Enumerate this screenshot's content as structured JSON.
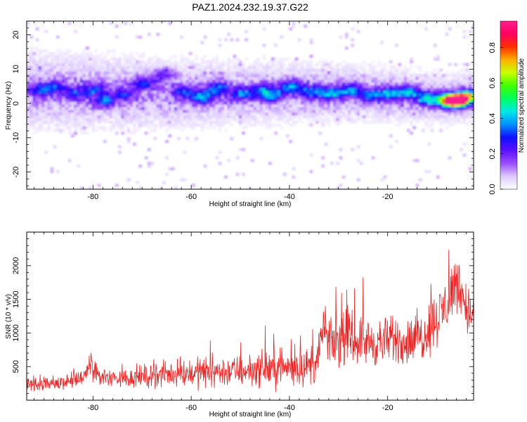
{
  "title": "PAZ1.2024.232.19.37.G22",
  "colors": {
    "snr_line": "#ee2222",
    "colormap": [
      "#ffffff",
      "#dcc8ff",
      "#9b4dff",
      "#5a10ff",
      "#1010ff",
      "#0090ff",
      "#00e8e8",
      "#00ff60",
      "#40ff00",
      "#c8ff00",
      "#ffb000",
      "#ff3000",
      "#ff0060",
      "#ff1e8c"
    ]
  },
  "chart_data": [
    {
      "type": "heatmap",
      "title": "PAZ1.2024.232.19.37.G22",
      "xlabel": "Height of straight line (km)",
      "ylabel": "Frequency (Hz)",
      "xlim": [
        -93.5,
        -2.5
      ],
      "ylim": [
        -25,
        24
      ],
      "xticks": [
        -80,
        -60,
        -40,
        -20
      ],
      "yticks": [
        -20,
        -10,
        0,
        10,
        20
      ],
      "colorbar": {
        "label": "Normalized spectral amplitude",
        "range": [
          0.0,
          0.95
        ],
        "ticks": [
          0.0,
          0.2,
          0.4,
          0.6,
          0.8
        ]
      },
      "ridge": [
        [
          -93,
          3.5
        ],
        [
          -80,
          3.0
        ],
        [
          -60,
          2.5
        ],
        [
          -40,
          3.0
        ],
        [
          -20,
          2.5
        ],
        [
          -10,
          1.0
        ],
        [
          -3,
          1.5
        ]
      ],
      "peaks": [
        {
          "x": -91,
          "y": 3.5,
          "z": 0.22
        },
        {
          "x": -88,
          "y": 4.5,
          "z": 0.18
        },
        {
          "x": -84,
          "y": 2.5,
          "z": 0.2
        },
        {
          "x": -80,
          "y": 4.0,
          "z": 0.18
        },
        {
          "x": -78,
          "y": 0.5,
          "z": 0.25
        },
        {
          "x": -74,
          "y": 2.5,
          "z": 0.18
        },
        {
          "x": -70,
          "y": 5.5,
          "z": 0.2
        },
        {
          "x": -66,
          "y": 8.0,
          "z": 0.15
        },
        {
          "x": -62,
          "y": 3.0,
          "z": 0.22
        },
        {
          "x": -58,
          "y": 1.5,
          "z": 0.3
        },
        {
          "x": -55,
          "y": 4.0,
          "z": 0.25
        },
        {
          "x": -50,
          "y": 2.5,
          "z": 0.25
        },
        {
          "x": -46,
          "y": 3.5,
          "z": 0.22
        },
        {
          "x": -44,
          "y": 2.0,
          "z": 0.28
        },
        {
          "x": -40,
          "y": 4.5,
          "z": 0.3
        },
        {
          "x": -36,
          "y": 3.0,
          "z": 0.25
        },
        {
          "x": -32,
          "y": 2.5,
          "z": 0.3
        },
        {
          "x": -28,
          "y": 3.5,
          "z": 0.28
        },
        {
          "x": -24,
          "y": 2.0,
          "z": 0.25
        },
        {
          "x": -20,
          "y": 2.5,
          "z": 0.3
        },
        {
          "x": -16,
          "y": 3.0,
          "z": 0.3
        },
        {
          "x": -12,
          "y": 1.0,
          "z": 0.35
        },
        {
          "x": -8,
          "y": 0.5,
          "z": 0.45
        },
        {
          "x": -6.5,
          "y": 0.5,
          "z": 0.9
        },
        {
          "x": -4,
          "y": 1.5,
          "z": 0.55
        }
      ]
    },
    {
      "type": "line",
      "xlabel": "Height of straight line (km)",
      "ylabel": "SNR (10 * v/v)",
      "xlim": [
        -93.5,
        -2.5
      ],
      "ylim": [
        0,
        2500
      ],
      "xticks": [
        -80,
        -60,
        -40,
        -20
      ],
      "yticks": [
        500,
        1000,
        1500,
        2000
      ],
      "series": [
        {
          "x": [
            -93.5,
            -90,
            -85,
            -82,
            -80.5,
            -78,
            -75,
            -70,
            -66,
            -62,
            -58,
            -54,
            -50,
            -46,
            -42,
            -38,
            -35,
            -34,
            -33.2,
            -32,
            -29,
            -26,
            -23,
            -21,
            -18,
            -16,
            -13,
            -11,
            -9,
            -7.5,
            -6,
            -4,
            -2.5
          ],
          "y": [
            250,
            250,
            270,
            320,
            500,
            330,
            320,
            350,
            380,
            400,
            420,
            430,
            430,
            460,
            480,
            500,
            520,
            650,
            1100,
            850,
            900,
            900,
            850,
            860,
            900,
            850,
            950,
            1150,
            1300,
            1500,
            1800,
            1400,
            1200
          ],
          "spread": [
            110,
            120,
            130,
            140,
            200,
            150,
            160,
            180,
            200,
            220,
            250,
            260,
            250,
            280,
            300,
            300,
            300,
            320,
            400,
            380,
            380,
            380,
            380,
            380,
            400,
            380,
            420,
            450,
            480,
            500,
            480,
            450,
            400
          ]
        }
      ]
    }
  ]
}
